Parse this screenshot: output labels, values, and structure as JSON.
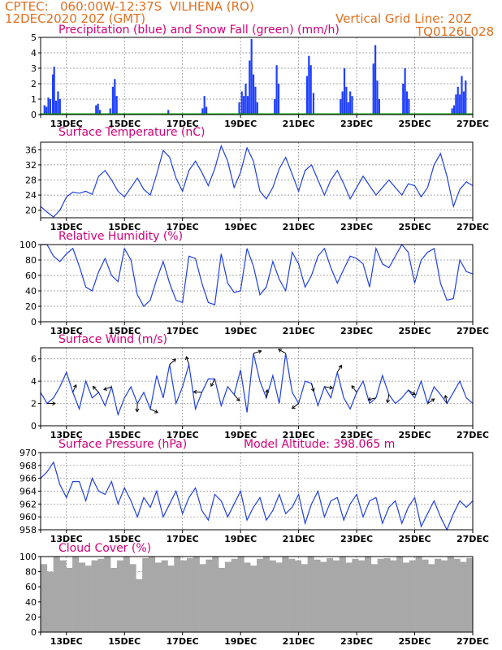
{
  "header": {
    "source": "CPTEC:",
    "location": "060:00W-12:37S  VILHENA (RO)",
    "init": "12DEC2020 20Z (GMT)",
    "grid_note": "Vertical Grid Line: 20Z",
    "code": "TQ0126L028"
  },
  "x_day_labels": [
    "13DEC",
    "15DEC",
    "17DEC",
    "19DEC",
    "21DEC",
    "23DEC",
    "25DEC",
    "27DEC"
  ],
  "colors": {
    "precip": "#2040ff",
    "snow": "#00aa00",
    "line": "#2040e0",
    "cloud": "#a8a8a8",
    "header": "#e07020",
    "title": "#d0007a",
    "wind_arrow": "#000000"
  },
  "chart_data": [
    {
      "id": "precip",
      "type": "bar",
      "title": "Precipitation (blue) and Snow Fall (green) (mm/h)",
      "ylim": [
        0,
        5
      ],
      "yticks": [
        0,
        1,
        2,
        3,
        4,
        5
      ],
      "series": [
        {
          "name": "Precipitation",
          "color": "#2040ff",
          "points": [
            [
              0.6,
              0.6
            ],
            [
              0.9,
              0.5
            ],
            [
              1.2,
              1.1
            ],
            [
              1.5,
              1.0
            ],
            [
              1.9,
              2.6
            ],
            [
              2.1,
              3.1
            ],
            [
              2.4,
              0.9
            ],
            [
              2.7,
              1.5
            ],
            [
              3.0,
              1.0
            ],
            [
              8.6,
              0.6
            ],
            [
              8.9,
              0.7
            ],
            [
              9.2,
              0.3
            ],
            [
              10.8,
              0.4
            ],
            [
              11.2,
              1.8
            ],
            [
              11.5,
              2.3
            ],
            [
              11.8,
              1.2
            ],
            [
              19.8,
              0.3
            ],
            [
              25.1,
              0.4
            ],
            [
              25.4,
              1.2
            ],
            [
              25.7,
              0.5
            ],
            [
              30.8,
              0.8
            ],
            [
              31.2,
              1.5
            ],
            [
              31.5,
              1.2
            ],
            [
              31.8,
              2.0
            ],
            [
              32.1,
              1.2
            ],
            [
              32.4,
              3.5
            ],
            [
              32.7,
              4.9
            ],
            [
              33.0,
              2.6
            ],
            [
              33.3,
              1.8
            ],
            [
              33.6,
              0.8
            ],
            [
              36.3,
              1.0
            ],
            [
              36.6,
              3.2
            ],
            [
              36.9,
              2.0
            ],
            [
              41.3,
              2.5
            ],
            [
              41.6,
              3.8
            ],
            [
              41.9,
              3.2
            ],
            [
              42.3,
              1.4
            ],
            [
              46.5,
              1.0
            ],
            [
              46.8,
              1.5
            ],
            [
              47.1,
              3.0
            ],
            [
              47.4,
              1.8
            ],
            [
              47.7,
              0.8
            ],
            [
              48.0,
              1.5
            ],
            [
              48.3,
              1.2
            ],
            [
              51.6,
              3.3
            ],
            [
              51.9,
              4.5
            ],
            [
              52.2,
              2.2
            ],
            [
              52.5,
              1.0
            ],
            [
              56.2,
              2.0
            ],
            [
              56.5,
              3.0
            ],
            [
              56.8,
              1.5
            ],
            [
              57.1,
              1.0
            ],
            [
              63.8,
              0.4
            ],
            [
              64.1,
              0.6
            ],
            [
              64.4,
              1.3
            ],
            [
              64.7,
              1.8
            ],
            [
              65.0,
              1.3
            ],
            [
              65.3,
              2.5
            ],
            [
              65.6,
              1.5
            ],
            [
              65.9,
              2.2
            ]
          ]
        },
        {
          "name": "Snow Fall",
          "color": "#00aa00",
          "value": 0.05
        }
      ]
    },
    {
      "id": "temp",
      "type": "line",
      "title": "Surface Temperature (nC)",
      "ylim": [
        18,
        38
      ],
      "yticks": [
        20,
        24,
        28,
        32,
        36
      ],
      "x": [
        0,
        1,
        2,
        3,
        4,
        5,
        6,
        7,
        8,
        9,
        10,
        11,
        12,
        13,
        14,
        15,
        16,
        17,
        18,
        19,
        20,
        21,
        22,
        23,
        24,
        25,
        26,
        27,
        28,
        29,
        30,
        31,
        32,
        33,
        34,
        35,
        36,
        37,
        38,
        39,
        40,
        41,
        42,
        43,
        44,
        45,
        46,
        47,
        48,
        49,
        50,
        51,
        52,
        53,
        54,
        55,
        56,
        57,
        58,
        59,
        60,
        61,
        62,
        63,
        64,
        65,
        66,
        67
      ],
      "values": [
        21,
        19.5,
        18.2,
        20,
        23.5,
        24.8,
        24.5,
        25,
        24.2,
        29,
        30.5,
        28,
        25,
        23.5,
        26,
        28.5,
        25.5,
        24,
        29.5,
        35.8,
        34,
        28.5,
        25,
        30.5,
        33,
        30,
        26.5,
        31,
        37,
        33,
        26,
        30,
        36.5,
        33,
        25,
        23,
        26,
        31,
        34,
        29.5,
        25,
        30.5,
        32,
        28,
        24,
        28,
        30.5,
        27,
        23,
        26,
        29,
        26.5,
        24,
        26,
        28,
        26,
        24,
        27,
        26.5,
        23.5,
        26,
        32,
        35,
        29,
        21,
        25.5,
        27.5,
        26.5
      ]
    },
    {
      "id": "rh",
      "type": "line",
      "title": "Relative Humidity (%)",
      "ylim": [
        0,
        100
      ],
      "yticks": [
        0,
        20,
        40,
        60,
        80,
        100
      ],
      "x": [
        0,
        1,
        2,
        3,
        4,
        5,
        6,
        7,
        8,
        9,
        10,
        11,
        12,
        13,
        14,
        15,
        16,
        17,
        18,
        19,
        20,
        21,
        22,
        23,
        24,
        25,
        26,
        27,
        28,
        29,
        30,
        31,
        32,
        33,
        34,
        35,
        36,
        37,
        38,
        39,
        40,
        41,
        42,
        43,
        44,
        45,
        46,
        47,
        48,
        49,
        50,
        51,
        52,
        53,
        54,
        55,
        56,
        57,
        58,
        59,
        60,
        61,
        62,
        63,
        64,
        65,
        66,
        67
      ],
      "values": [
        100,
        100,
        85,
        78,
        88,
        95,
        72,
        45,
        40,
        65,
        82,
        60,
        52,
        95,
        80,
        35,
        20,
        28,
        55,
        78,
        50,
        28,
        25,
        85,
        82,
        50,
        25,
        22,
        88,
        50,
        38,
        40,
        95,
        72,
        35,
        45,
        78,
        55,
        40,
        90,
        75,
        45,
        60,
        85,
        95,
        70,
        50,
        68,
        85,
        82,
        75,
        45,
        95,
        75,
        70,
        85,
        100,
        90,
        50,
        80,
        90,
        95,
        50,
        28,
        30,
        80,
        65,
        62
      ]
    },
    {
      "id": "wind",
      "type": "line",
      "title": "Surface Wind (m/s)",
      "ylim": [
        0,
        7
      ],
      "yticks": [
        0,
        2,
        4,
        6
      ],
      "x": [
        0,
        1,
        2,
        3,
        4,
        5,
        6,
        7,
        8,
        9,
        10,
        11,
        12,
        13,
        14,
        15,
        16,
        17,
        18,
        19,
        20,
        21,
        22,
        23,
        24,
        25,
        26,
        27,
        28,
        29,
        30,
        31,
        32,
        33,
        34,
        35,
        36,
        37,
        38,
        39,
        40,
        41,
        42,
        43,
        44,
        45,
        46,
        47,
        48,
        49,
        50,
        51,
        52,
        53,
        54,
        55,
        56,
        57,
        58,
        59,
        60,
        61,
        62,
        63,
        64,
        65,
        66,
        67
      ],
      "values": [
        3,
        2,
        2.5,
        3.5,
        4.8,
        3,
        1.5,
        4,
        2.5,
        3,
        1.8,
        3.5,
        1,
        2.5,
        3.5,
        2,
        3,
        1.5,
        4.5,
        2.5,
        5.5,
        2,
        3.5,
        5.5,
        1.5,
        3,
        4.2,
        4.2,
        1.8,
        3.5,
        2.8,
        5,
        1.2,
        6.5,
        4,
        2.5,
        4.5,
        2,
        6.5,
        3,
        2,
        4,
        3.8,
        1.8,
        3.5,
        2.5,
        4.8,
        2.5,
        1.5,
        3,
        4,
        2,
        2.5,
        4.5,
        2.8,
        2,
        2.5,
        3.2,
        2.5,
        4,
        2,
        3.5,
        2.8,
        2,
        3,
        4,
        2.5,
        2
      ]
    },
    {
      "id": "pressure",
      "type": "line",
      "title": "Surface Pressure (hPa)",
      "annotation": "Model Altitude: 398.065 m",
      "ylim": [
        958,
        970
      ],
      "yticks": [
        958,
        960,
        962,
        964,
        966,
        968,
        970
      ],
      "x": [
        0,
        1,
        2,
        3,
        4,
        5,
        6,
        7,
        8,
        9,
        10,
        11,
        12,
        13,
        14,
        15,
        16,
        17,
        18,
        19,
        20,
        21,
        22,
        23,
        24,
        25,
        26,
        27,
        28,
        29,
        30,
        31,
        32,
        33,
        34,
        35,
        36,
        37,
        38,
        39,
        40,
        41,
        42,
        43,
        44,
        45,
        46,
        47,
        48,
        49,
        50,
        51,
        52,
        53,
        54,
        55,
        56,
        57,
        58,
        59,
        60,
        61,
        62,
        63,
        64,
        65,
        66,
        67
      ],
      "values": [
        966,
        967,
        968.5,
        965,
        963,
        965.5,
        965.5,
        962.5,
        966,
        964,
        963.5,
        965.5,
        962,
        964.5,
        962.5,
        960,
        963,
        961.5,
        964,
        960,
        962,
        964,
        960.5,
        963,
        964.5,
        961,
        959.5,
        963.5,
        962.5,
        960,
        962,
        964,
        959.5,
        961.5,
        963,
        959.5,
        961,
        963.5,
        960.5,
        961.5,
        963.5,
        959,
        962,
        964,
        960,
        962.5,
        963,
        959.5,
        962,
        963.5,
        960,
        962.5,
        963,
        959,
        961.5,
        962.5,
        959,
        961.5,
        963,
        958.5,
        960.5,
        962.5,
        960,
        958,
        960.5,
        962.5,
        961.5,
        962.5
      ]
    },
    {
      "id": "cloud",
      "type": "bar",
      "title": "Cloud Cover (%)",
      "ylim": [
        0,
        100
      ],
      "yticks": [
        0,
        20,
        40,
        60,
        80,
        100
      ],
      "values": [
        90,
        80,
        100,
        95,
        85,
        100,
        92,
        88,
        95,
        97,
        100,
        85,
        95,
        100,
        90,
        70,
        98,
        100,
        92,
        95,
        88,
        100,
        95,
        98,
        100,
        90,
        96,
        100,
        85,
        93,
        97,
        100,
        92,
        88,
        97,
        100,
        95,
        92,
        100,
        97,
        95,
        90,
        100,
        96,
        93,
        98,
        95,
        100,
        92,
        97,
        95,
        100,
        90,
        97,
        98,
        95,
        100,
        92,
        95,
        100,
        96,
        90,
        97,
        95,
        100,
        97,
        93,
        98
      ]
    }
  ]
}
